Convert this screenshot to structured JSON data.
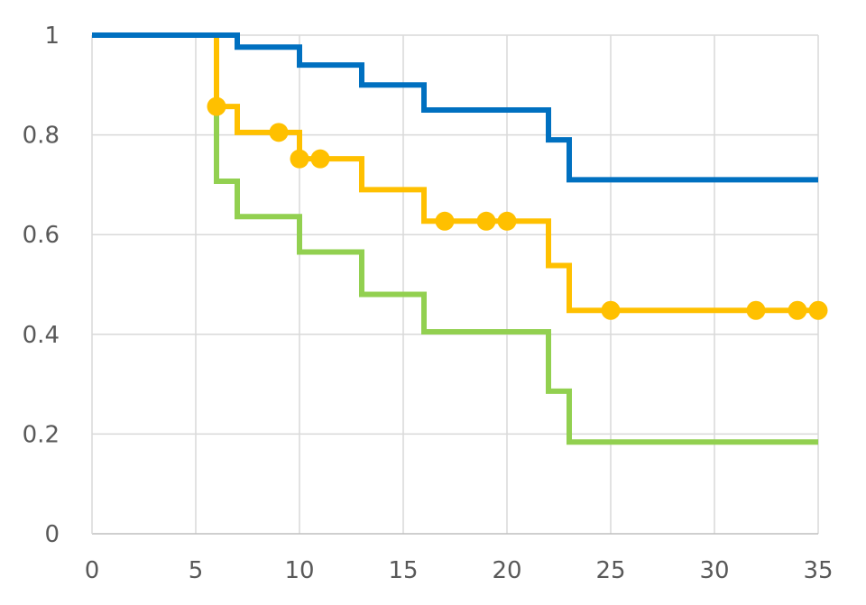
{
  "chart_data": {
    "type": "line",
    "step": true,
    "title": "",
    "xlabel": "",
    "ylabel": "",
    "xlim": [
      0,
      35
    ],
    "ylim": [
      0,
      1
    ],
    "x_ticks": [
      0,
      5,
      10,
      15,
      20,
      25,
      30,
      35
    ],
    "y_ticks": [
      0,
      0.2,
      0.4,
      0.6,
      0.8,
      1
    ],
    "x_tick_labels": [
      "0",
      "5",
      "10",
      "15",
      "20",
      "25",
      "30",
      "35"
    ],
    "y_tick_labels": [
      "0",
      "0.2",
      "0.4",
      "0.6",
      "0.8",
      "1"
    ],
    "grid": true,
    "legend": "none",
    "series": [
      {
        "color": "#0070C0",
        "steps": [
          [
            0,
            1
          ],
          [
            7,
            0.976
          ],
          [
            10,
            0.94
          ],
          [
            13,
            0.9
          ],
          [
            16,
            0.85
          ],
          [
            22,
            0.79
          ],
          [
            23,
            0.71
          ],
          [
            35,
            0.71
          ]
        ],
        "censored": []
      },
      {
        "color": "#FFC000",
        "steps": [
          [
            0,
            1
          ],
          [
            6,
            0.857
          ],
          [
            7,
            0.805
          ],
          [
            10,
            0.752
          ],
          [
            13,
            0.69
          ],
          [
            16,
            0.627
          ],
          [
            22,
            0.538
          ],
          [
            23,
            0.448
          ],
          [
            35,
            0.448
          ]
        ],
        "censored": [
          [
            6,
            0.857
          ],
          [
            9,
            0.805
          ],
          [
            10,
            0.752
          ],
          [
            11,
            0.752
          ],
          [
            17,
            0.627
          ],
          [
            19,
            0.627
          ],
          [
            20,
            0.627
          ],
          [
            25,
            0.448
          ],
          [
            32,
            0.448
          ],
          [
            34,
            0.448
          ],
          [
            35,
            0.448
          ]
        ]
      },
      {
        "color": "#92D050",
        "steps": [
          [
            6,
            0.857
          ],
          [
            6,
            0.707
          ],
          [
            7,
            0.636
          ],
          [
            10,
            0.565
          ],
          [
            13,
            0.48
          ],
          [
            16,
            0.405
          ],
          [
            22,
            0.286
          ],
          [
            23,
            0.184
          ],
          [
            35,
            0.184
          ]
        ],
        "censored": []
      }
    ]
  }
}
